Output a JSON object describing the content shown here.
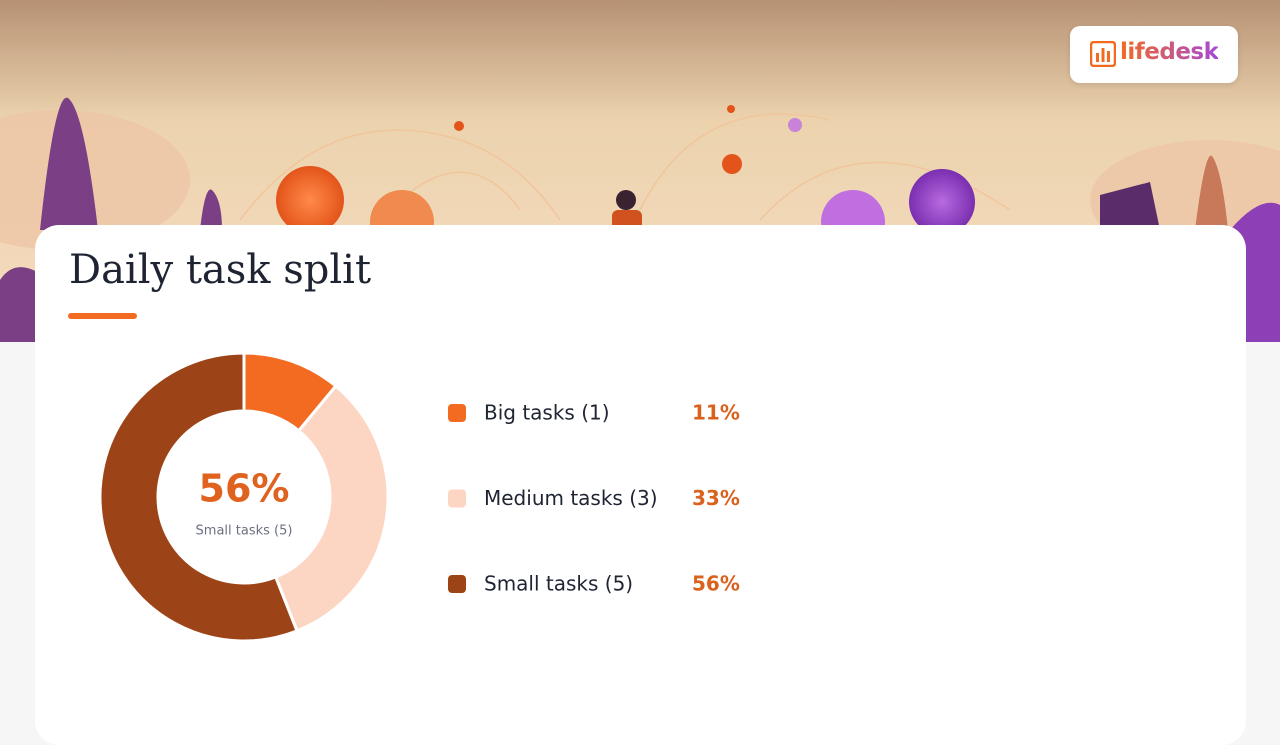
{
  "brand": "lifedesk",
  "chart_data": {
    "type": "donut",
    "title": "Daily task split",
    "categories": [
      "Big tasks (1)",
      "Medium tasks (3)",
      "Small tasks (5)"
    ],
    "values": [
      11,
      33,
      56
    ],
    "value_labels": [
      "11%",
      "33%",
      "56%"
    ],
    "colors": [
      "#f26b21",
      "#fdd5c3",
      "#9c4418"
    ]
  }
}
